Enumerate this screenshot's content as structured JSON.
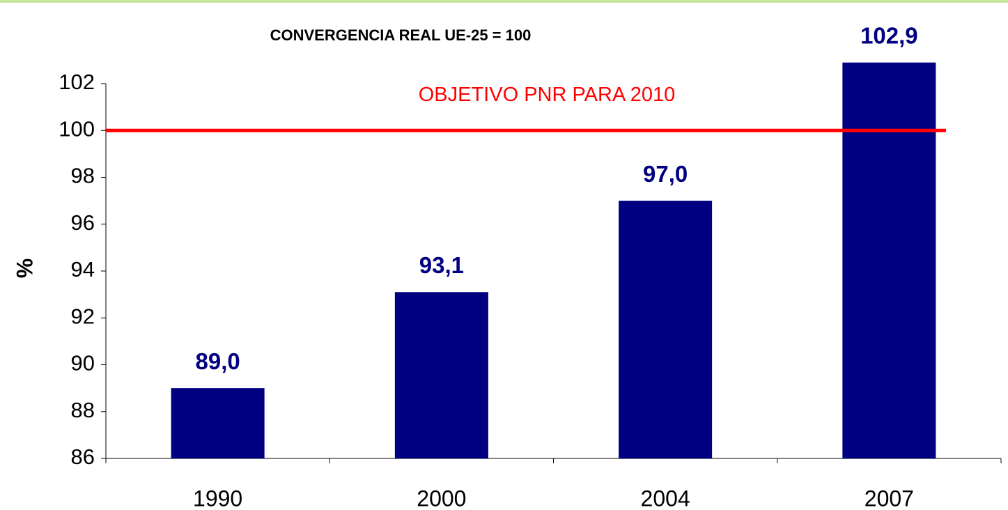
{
  "chart_data": {
    "type": "bar",
    "title": "CONVERGENCIA REAL UE-25 = 100",
    "y_label": "%",
    "categories": [
      "1990",
      "2000",
      "2004",
      "2007"
    ],
    "values": [
      89.0,
      93.1,
      97.0,
      102.9
    ],
    "value_labels": [
      "89,0",
      "93,1",
      "97,0",
      "102,9"
    ],
    "color": "#000080",
    "ylim": [
      86,
      102
    ],
    "yticks": [
      86,
      88,
      90,
      92,
      94,
      96,
      98,
      100,
      102
    ],
    "reference_line": {
      "value": 100,
      "label": "OBJETIVO PNR PARA  2010",
      "color": "#ff0000"
    }
  }
}
